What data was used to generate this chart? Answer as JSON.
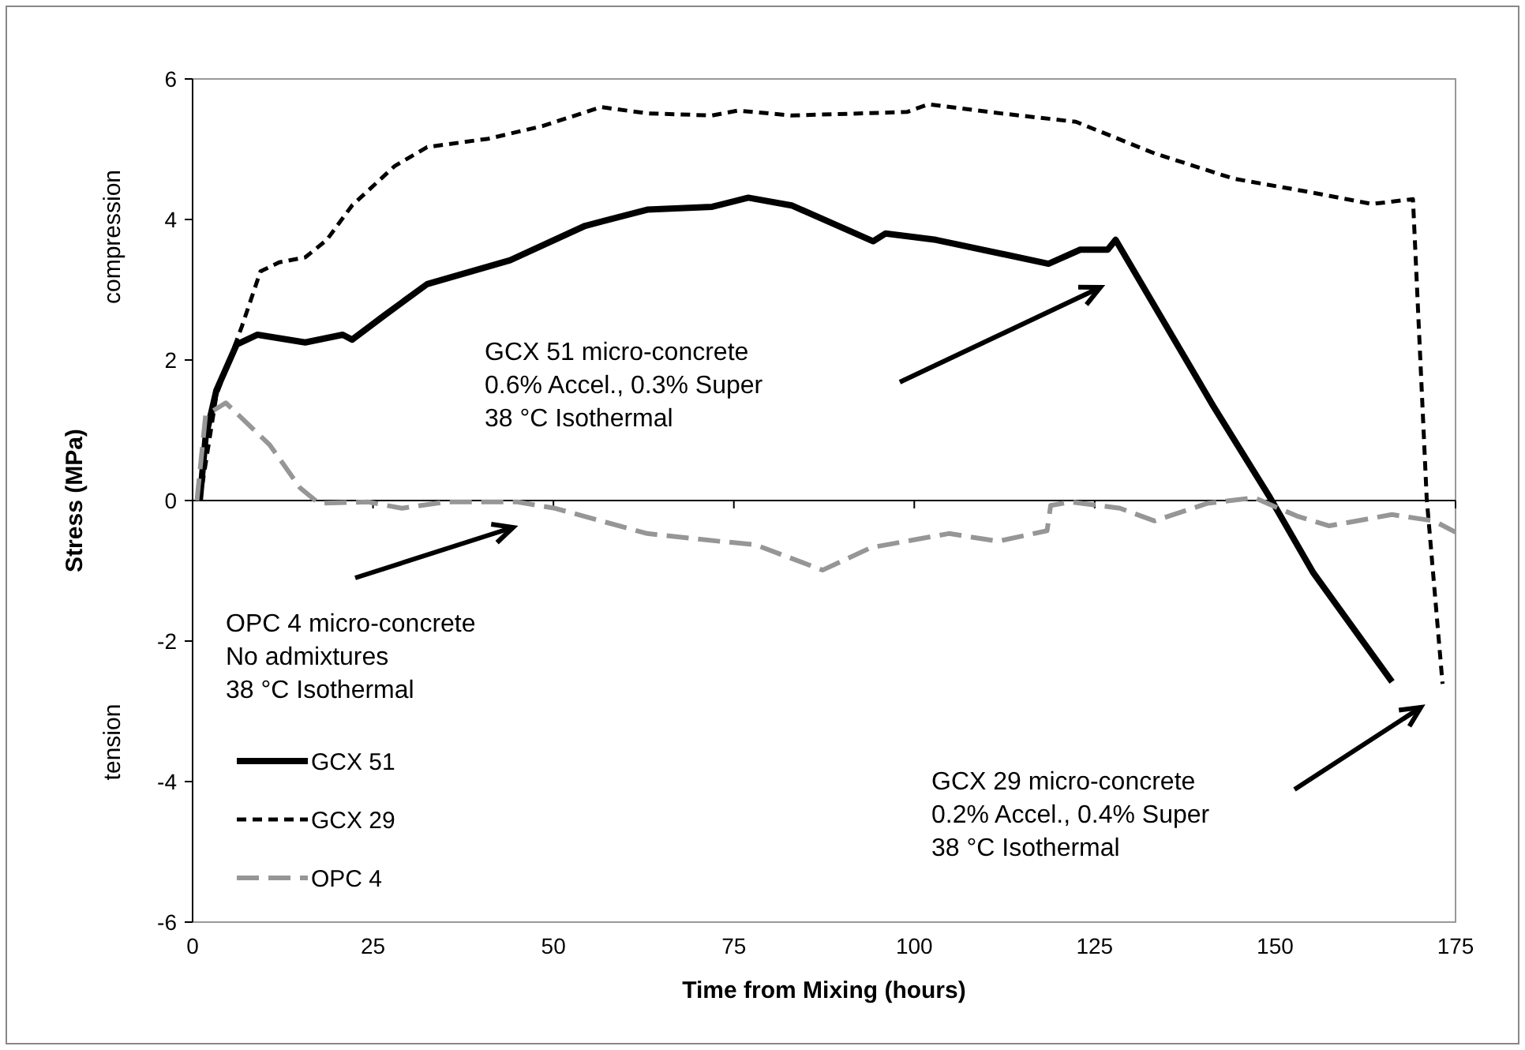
{
  "chart_data": {
    "type": "line",
    "xlabel": "Time from Mixing (hours)",
    "ylabel": "Stress (MPa)",
    "xlim": [
      0,
      175
    ],
    "xticks": [
      0,
      25,
      50,
      75,
      100,
      125,
      150,
      175
    ],
    "ylim": [
      -6,
      6
    ],
    "yticks": [
      -6,
      -4,
      -2,
      0,
      2,
      4,
      6
    ],
    "legend": "bottom left",
    "series": [
      {
        "name": "GCX 51",
        "color": "#000000",
        "line_style": "solid",
        "x": [
          1,
          1.8,
          3.3,
          6.1,
          9,
          15.6,
          20.8,
          22.1,
          26.5,
          32.5,
          44,
          54.4,
          63,
          72,
          77,
          83,
          94.3,
          96,
          103,
          118.6,
          123,
          126.8,
          127.9,
          141.4,
          149.3,
          155.3,
          166.2
        ],
        "values": [
          0,
          0.9,
          1.57,
          2.22,
          2.36,
          2.25,
          2.36,
          2.29,
          2.63,
          3.08,
          3.42,
          3.91,
          4.14,
          4.18,
          4.31,
          4.2,
          3.69,
          3.8,
          3.71,
          3.37,
          3.57,
          3.57,
          3.71,
          1.35,
          0.04,
          -1.03,
          -2.58
        ]
      },
      {
        "name": "GCX 29",
        "color": "#000000",
        "line_style": "dashed",
        "x": [
          1,
          3.3,
          6.8,
          9.4,
          12,
          15.6,
          18.6,
          22.1,
          28,
          32.5,
          41,
          48.5,
          56.6,
          63,
          72,
          75.6,
          83,
          99,
          102,
          112,
          122.4,
          133.3,
          144.3,
          155.3,
          163.4,
          169.1,
          171,
          173.2
        ],
        "values": [
          0,
          1.5,
          2.47,
          3.26,
          3.39,
          3.46,
          3.71,
          4.2,
          4.76,
          5.03,
          5.15,
          5.33,
          5.6,
          5.51,
          5.48,
          5.55,
          5.48,
          5.53,
          5.64,
          5.51,
          5.39,
          4.94,
          4.58,
          4.38,
          4.22,
          4.29,
          0.04,
          -2.61
        ]
      },
      {
        "name": "OPC 4",
        "color": "#969696",
        "line_style": "dashed",
        "x": [
          0.6,
          1.8,
          4.6,
          10.7,
          14.9,
          17.5,
          24.3,
          29,
          35,
          45,
          50.2,
          63,
          73,
          78,
          87.3,
          94,
          104.8,
          111.6,
          118.4,
          118.9,
          121.7,
          128.5,
          133.3,
          140.6,
          147.1,
          153,
          157.5,
          166.2,
          172,
          175
        ],
        "values": [
          0,
          1.21,
          1.39,
          0.79,
          0.18,
          -0.04,
          -0.02,
          -0.11,
          -0.02,
          -0.02,
          -0.11,
          -0.47,
          -0.58,
          -0.63,
          -0.99,
          -0.67,
          -0.47,
          -0.58,
          -0.43,
          -0.07,
          -0.02,
          -0.11,
          -0.29,
          -0.04,
          0.04,
          -0.22,
          -0.36,
          -0.2,
          -0.29,
          -0.45
        ]
      }
    ],
    "annotations": [
      "compression",
      "tension",
      "GCX 51 micro-concrete\n0.6% Accel., 0.3% Super\n38 °C Isothermal",
      "OPC 4 micro-concrete\nNo admixtures\n38 °C Isothermal",
      "GCX 29 micro-concrete\n0.2% Accel., 0.4% Super\n38 °C Isothermal"
    ]
  }
}
